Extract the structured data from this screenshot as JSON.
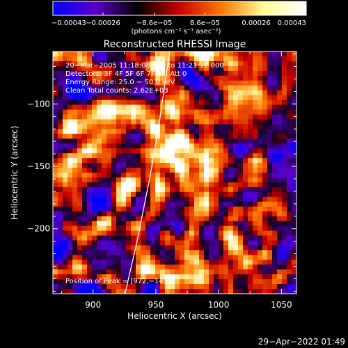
{
  "colorbar": {
    "tick_labels": [
      "−0.00043",
      "−0.00026",
      "−8.6e−05",
      "8.6e−05",
      "0.00026",
      "0.00043"
    ],
    "tick_values": [
      -0.00043,
      -0.00026,
      -8.6e-05,
      8.6e-05,
      0.00026,
      0.00043
    ],
    "range": [
      -0.00043,
      0.00043
    ],
    "units_label": "(photons cm⁻² s⁻¹ asec⁻²)",
    "colormap": [
      "#0000ff",
      "#5a00c8",
      "#000000",
      "#c80000",
      "#ff7800",
      "#ffff99",
      "#ffffff"
    ]
  },
  "chart_data": {
    "type": "heatmap",
    "title": "Reconstructed RHESSI Image",
    "xlabel": "Heliocentric X (arcsec)",
    "ylabel": "Heliocentric Y (arcsec)",
    "xlim": [
      868,
      1062
    ],
    "ylim": [
      -252,
      -58
    ],
    "x_ticks": [
      900,
      950,
      1000,
      1050
    ],
    "y_ticks": [
      -100,
      -150,
      -200
    ],
    "limb_curve": [
      [
        925.5,
        -252
      ],
      [
        935,
        -210
      ],
      [
        945,
        -160
      ],
      [
        952,
        -120
      ],
      [
        961,
        -58
      ]
    ],
    "peak": [
      972,
      -145
    ],
    "annotations": {
      "time_range": "20−Mar−2005 11:18:08.000 to 11:21:12.000",
      "detectors": "Detectors: 3F 4F 5F 6F 7F 8F, Att 0",
      "energy_range": "Energy Range: 25.0 − 50.0 keV",
      "clean_counts": "Clean       Total counts: 2.62E+03",
      "peak_position": "Position of Peak = [972,−145]"
    }
  },
  "footer": {
    "timestamp": "29−Apr−2022 01:49"
  }
}
